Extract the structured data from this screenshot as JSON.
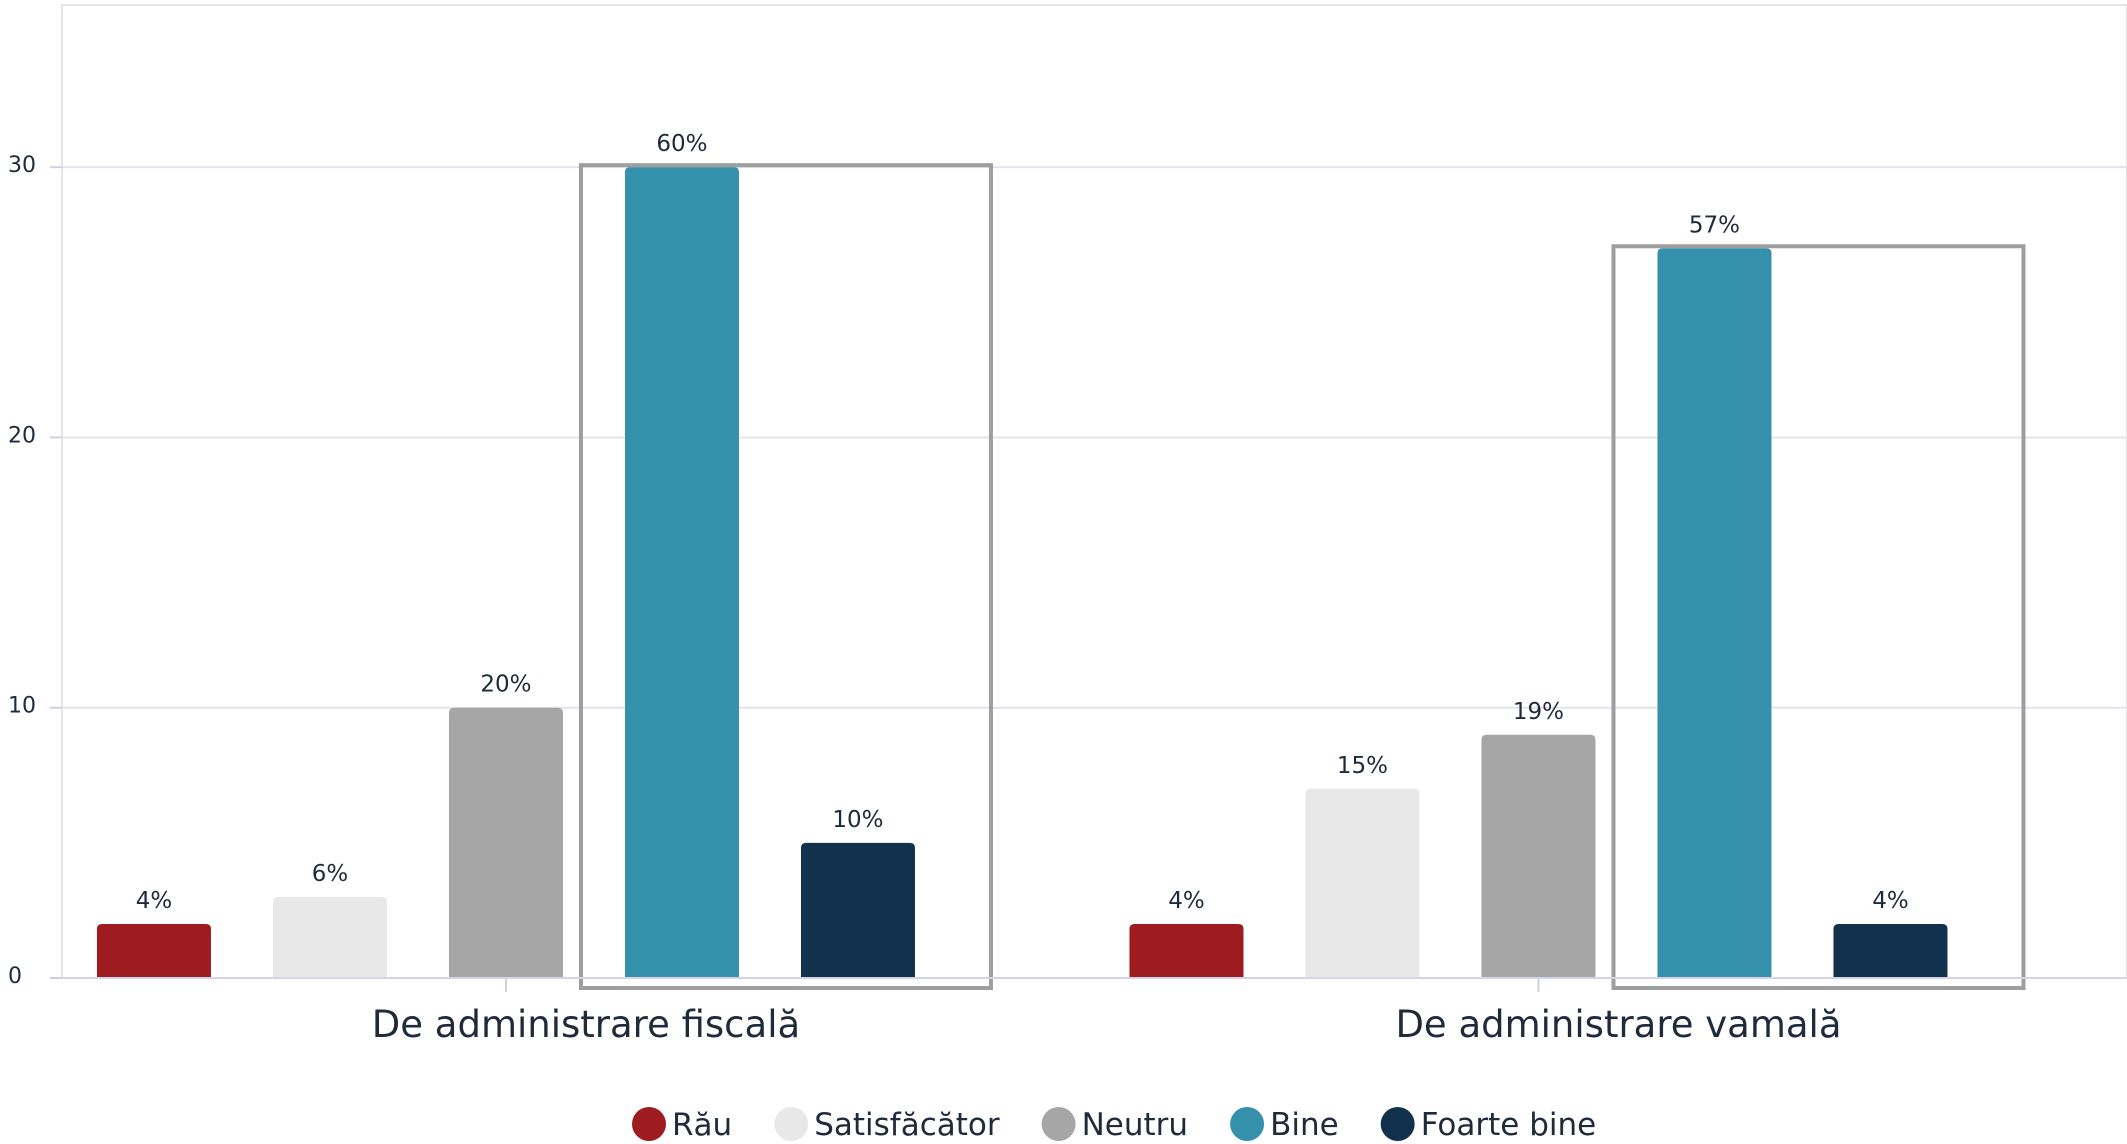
{
  "chart_data": {
    "type": "bar",
    "categories": [
      "De administrare fiscală",
      "De administrare vamală"
    ],
    "series": [
      {
        "name": "Rău",
        "color": "#9e1b20",
        "values": [
          2,
          2
        ],
        "labels": [
          "4%",
          "4%"
        ]
      },
      {
        "name": "Satisfăcător",
        "color": "#e8e8e8",
        "values": [
          3,
          7
        ],
        "labels": [
          "6%",
          "15%"
        ]
      },
      {
        "name": "Neutru",
        "color": "#a6a6a6",
        "values": [
          10,
          9
        ],
        "labels": [
          "20%",
          "19%"
        ]
      },
      {
        "name": "Bine",
        "color": "#3590ab",
        "values": [
          30,
          27
        ],
        "labels": [
          "60%",
          "57%"
        ]
      },
      {
        "name": "Foarte bine",
        "color": "#12314d",
        "values": [
          5,
          2
        ],
        "labels": [
          "10%",
          "4%"
        ]
      }
    ],
    "y_ticks": [
      0,
      10,
      20,
      30
    ],
    "ylim": [
      0,
      36
    ],
    "grid": true,
    "legend_position": "bottom",
    "highlight": {
      "series": [
        "Bine",
        "Foarte bine"
      ],
      "color": "#9e9e9e"
    }
  }
}
